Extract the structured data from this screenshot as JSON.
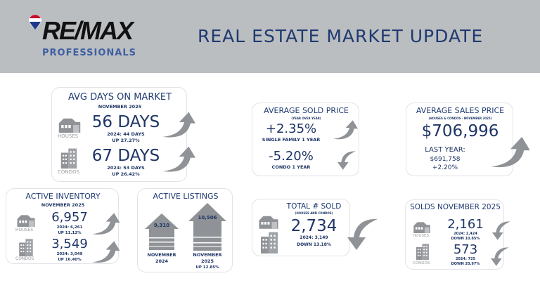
{
  "header": {
    "title": "REAL ESTATE MARKET UPDATE",
    "logo_text": "RE/MAX",
    "logo_sub": "PROFESSIONALS"
  },
  "colors": {
    "navy": "#1f3a70",
    "header_bg": "#bbbec1",
    "arrow_gray": "#8f9296",
    "logo_blue": "#3e5fa3"
  },
  "avg_days": {
    "title": "AVG DAYS ON MARKET",
    "sub": "NOVEMBER 2025",
    "houses_label": "HOUSES",
    "houses_value": "56 DAYS",
    "houses_prev": "2024: 44 DAYS",
    "houses_change": "UP 27.27%",
    "condos_label": "CONDOS",
    "condos_value": "67 DAYS",
    "condos_prev": "2024: 53 DAYS",
    "condos_change": "UP 26.42%"
  },
  "avg_sold": {
    "title": "AVERAGE SOLD PRICE",
    "sub": "(YEAR OVER YEAR)",
    "sf_value": "+2.35%",
    "sf_label": "SINGLE FAMILY 1 YEAR",
    "condo_value": "-5.20%",
    "condo_label": "CONDO 1 YEAR"
  },
  "avg_sales": {
    "title": "AVERAGE SALES PRICE",
    "sub": "(HOUSES & CONDOS - NOVEMBER 2025)",
    "value": "$706,996",
    "last_label": "LAST YEAR:",
    "last_value": "$691,758",
    "change": "+2.20%"
  },
  "inventory": {
    "title": "ACTIVE INVENTORY",
    "sub": "NOVEMBER 2025",
    "houses_label": "HOUSES",
    "houses_value": "6,957",
    "houses_prev": "2024: 6,261",
    "houses_change": "UP 11.12%",
    "condos_label": "CONDOS",
    "condos_value": "3,549",
    "condos_prev": "2024: 3,049",
    "condos_change": "UP 16.40%"
  },
  "listings": {
    "title": "ACTIVE LISTINGS",
    "prev_value": "9,310",
    "prev_label1": "NOVEMBER",
    "prev_label2": "2024",
    "cur_value": "10,506",
    "cur_label1": "NOVEMBER",
    "cur_label2": "2025",
    "change": "UP 12.85%"
  },
  "total_sold": {
    "title": "TOTAL # SOLD",
    "sub": "(HOUSES AND CONDOS)",
    "value": "2,734",
    "prev": "2024: 3,149",
    "change": "DOWN 13.18%"
  },
  "solds": {
    "title": "SOLDS NOVEMBER 2025",
    "houses_label": "HOUSES",
    "houses_value": "2,161",
    "houses_prev": "2024: 2,424",
    "houses_change": "DOWN 10.85%",
    "condos_label": "CONDOS",
    "condos_value": "573",
    "condos_prev": "2024: 725",
    "condos_change": "DOWN 20.97%"
  }
}
